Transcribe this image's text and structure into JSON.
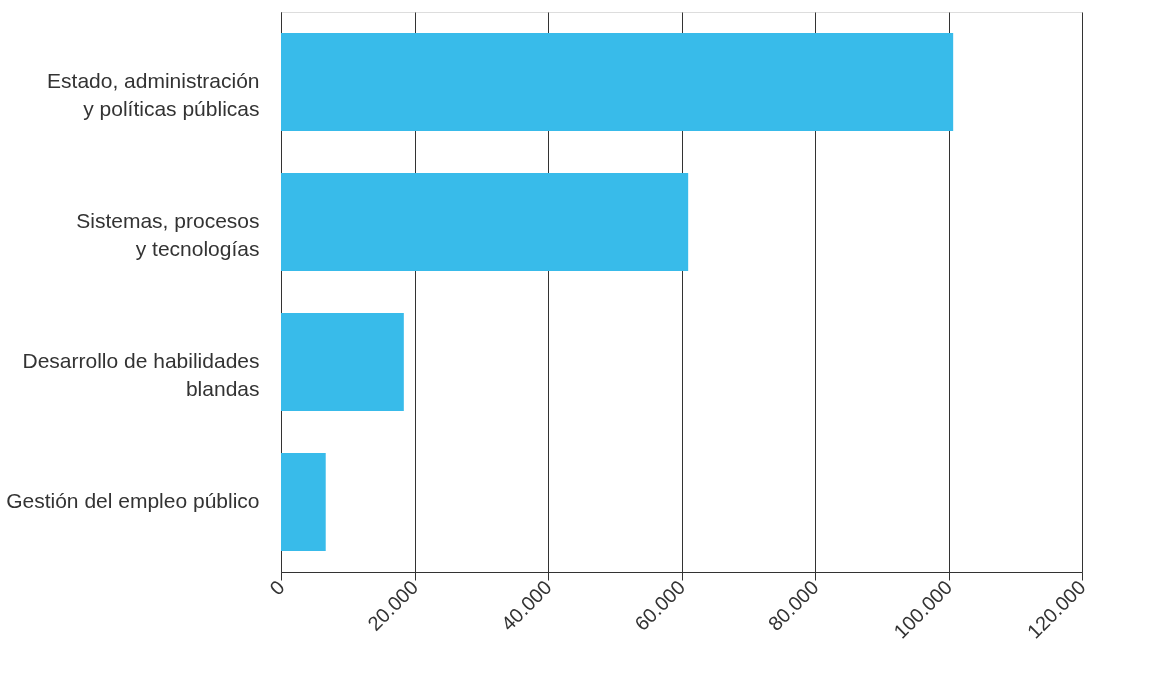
{
  "chart_data": {
    "type": "bar",
    "orientation": "horizontal",
    "categories": [
      "Estado, administración\ny políticas públicas",
      "Sistemas, procesos\ny tecnologías",
      "Desarrollo de habilidades\nblandas",
      "Gestión del empleo público"
    ],
    "values": [
      100700,
      61000,
      18400,
      6700
    ],
    "color": "#38bbea",
    "xlim": [
      0,
      120000
    ],
    "xticks": [
      {
        "value": 0,
        "label": "0"
      },
      {
        "value": 20000,
        "label": "20.000"
      },
      {
        "value": 40000,
        "label": "40.000"
      },
      {
        "value": 60000,
        "label": "60.000"
      },
      {
        "value": 80000,
        "label": "80.000"
      },
      {
        "value": 100000,
        "label": "100.000"
      },
      {
        "value": 120000,
        "label": "120.000"
      }
    ],
    "grid": "x"
  }
}
